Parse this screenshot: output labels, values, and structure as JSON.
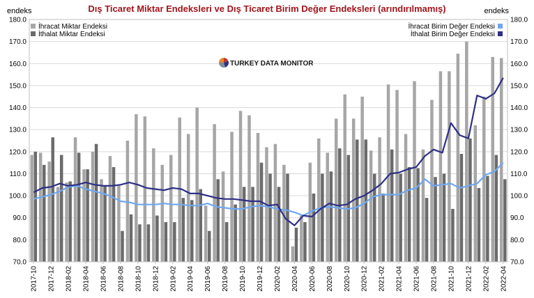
{
  "chart_data": {
    "type": "bar",
    "title": "Dış Ticaret Miktar Endeksleri ve Dış Ticaret Birim Değer Endeksleri (arındırılmamış)",
    "ylabel_left": "endeks",
    "ylabel_right": "endeks",
    "ylim": [
      70,
      180
    ],
    "yticks": [
      "70.0",
      "80.0",
      "90.0",
      "100.0",
      "110.0",
      "120.0",
      "130.0",
      "140.0",
      "150.0",
      "160.0",
      "170.0",
      "180.0"
    ],
    "grid": true,
    "legend_left": "top-left",
    "legend_right": "top-right",
    "watermark": "TURKEY DATA MONITOR",
    "colors": {
      "title": "#a0151c",
      "export_qty": "#a6a6a6",
      "import_qty": "#6b6b6b",
      "export_unit": "#6fa8f0",
      "import_unit": "#2e2f86",
      "grid": "#d9d9d9"
    },
    "x_tick_labels": [
      "2017-10",
      "2017-12",
      "2018-02",
      "2018-04",
      "2018-06",
      "2018-08",
      "2018-10",
      "2018-12",
      "2019-02",
      "2019-04",
      "2019-06",
      "2019-08",
      "2019-10",
      "2019-12",
      "2020-02",
      "2020-04",
      "2020-06",
      "2020-08",
      "2020-10",
      "2020-12",
      "2021-02",
      "2021-04",
      "2021-06",
      "2021-08",
      "2021-10",
      "2021-12",
      "2022-02",
      "2022-04"
    ],
    "categories": [
      "2017-10",
      "2017-11",
      "2017-12",
      "2018-01",
      "2018-02",
      "2018-03",
      "2018-04",
      "2018-05",
      "2018-06",
      "2018-07",
      "2018-08",
      "2018-09",
      "2018-10",
      "2018-11",
      "2018-12",
      "2019-01",
      "2019-02",
      "2019-03",
      "2019-04",
      "2019-05",
      "2019-06",
      "2019-07",
      "2019-08",
      "2019-09",
      "2019-10",
      "2019-11",
      "2019-12",
      "2020-01",
      "2020-02",
      "2020-03",
      "2020-04",
      "2020-05",
      "2020-06",
      "2020-07",
      "2020-08",
      "2020-09",
      "2020-10",
      "2020-11",
      "2020-12",
      "2021-01",
      "2021-02",
      "2021-03",
      "2021-04",
      "2021-05",
      "2021-06",
      "2021-07",
      "2021-08",
      "2021-09",
      "2021-10",
      "2021-11",
      "2021-12",
      "2022-01",
      "2022-02",
      "2022-03",
      "2022-04"
    ],
    "series": [
      {
        "name": "İhracat Miktar Endeksi",
        "kind": "bar",
        "values": [
          118.5,
          119.5,
          115.5,
          104.0,
          106.0,
          126.5,
          112.0,
          120.0,
          107.5,
          118.0,
          105.0,
          125.0,
          137.0,
          136.0,
          121.5,
          114.0,
          118.5,
          135.5,
          128.0,
          140.0,
          95.5,
          132.5,
          111.0,
          129.0,
          138.5,
          136.5,
          128.5,
          122.0,
          123.5,
          114.0,
          77.0,
          91.0,
          115.0,
          126.0,
          119.5,
          135.0,
          146.0,
          135.0,
          145.0,
          120.5,
          126.5,
          150.5,
          148.0,
          128.0,
          152.0,
          121.0,
          143.5,
          156.5,
          156.5,
          164.5,
          170.0,
          132.0,
          145.0,
          163.0,
          162.5
        ]
      },
      {
        "name": "İthalat Miktar Endeksi",
        "kind": "bar",
        "values": [
          120.0,
          114.0,
          126.5,
          118.5,
          106.5,
          119.5,
          112.0,
          123.5,
          104.5,
          113.0,
          84.0,
          91.5,
          87.0,
          87.0,
          91.0,
          88.0,
          88.0,
          99.0,
          98.0,
          103.0,
          84.0,
          107.5,
          88.0,
          96.0,
          104.0,
          104.0,
          115.0,
          110.0,
          104.0,
          110.0,
          85.5,
          88.0,
          101.0,
          110.0,
          111.0,
          121.5,
          118.5,
          125.5,
          125.5,
          110.0,
          101.0,
          121.0,
          110.0,
          113.0,
          112.5,
          99.0,
          108.5,
          110.0,
          94.0,
          119.0,
          126.0,
          103.5,
          109.0,
          118.5,
          107.5
        ]
      },
      {
        "name": "İhracat Birim Değer Endeksi",
        "kind": "line",
        "values": [
          98.5,
          99.5,
          100.5,
          102.0,
          104.0,
          104.5,
          103.0,
          102.0,
          101.0,
          99.5,
          97.5,
          97.0,
          96.0,
          96.0,
          96.0,
          96.5,
          96.0,
          96.0,
          95.5,
          95.5,
          96.5,
          95.0,
          94.5,
          94.0,
          94.0,
          95.0,
          95.5,
          95.0,
          94.0,
          93.5,
          92.5,
          91.0,
          93.0,
          94.5,
          95.0,
          94.5,
          94.0,
          94.5,
          96.5,
          99.5,
          100.5,
          100.5,
          100.5,
          102.5,
          103.5,
          107.5,
          104.5,
          105.0,
          105.5,
          103.5,
          104.5,
          105.5,
          109.5,
          111.0,
          115.0
        ]
      },
      {
        "name": "İthalat Birim Değer Endeksi",
        "kind": "line",
        "values": [
          101.5,
          103.5,
          104.0,
          105.5,
          104.5,
          105.0,
          106.0,
          105.0,
          104.5,
          104.5,
          105.0,
          106.0,
          105.0,
          103.5,
          103.0,
          102.5,
          103.5,
          103.0,
          101.0,
          101.0,
          100.0,
          99.0,
          98.5,
          98.5,
          98.0,
          97.5,
          97.5,
          95.5,
          96.0,
          89.5,
          86.5,
          91.0,
          90.5,
          94.0,
          96.5,
          95.5,
          96.0,
          98.5,
          100.0,
          102.5,
          105.5,
          110.0,
          110.5,
          112.0,
          113.0,
          118.0,
          121.0,
          119.5,
          133.0,
          127.5,
          126.0,
          145.5,
          144.0,
          146.5,
          153.5
        ]
      }
    ]
  }
}
